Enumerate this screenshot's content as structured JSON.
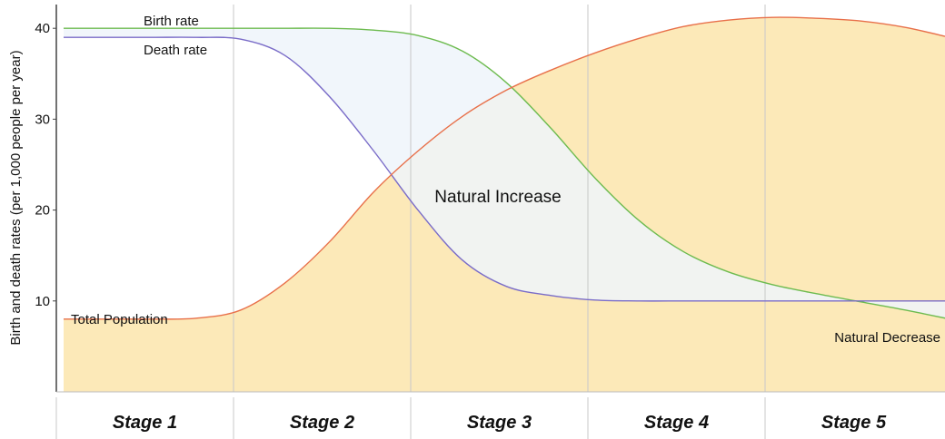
{
  "chart_data": {
    "type": "line",
    "title": "",
    "ylabel": "Birth and death rates (per 1,000 people per year)",
    "xlabel": "",
    "ylim": [
      0,
      41
    ],
    "yticks": [
      10,
      20,
      30,
      40
    ],
    "ytick_labels": [
      "10",
      "20",
      "30",
      "40"
    ],
    "grid": "vertical stage dividers",
    "categories": [
      "Stage 1",
      "Stage 2",
      "Stage 3",
      "Stage 4",
      "Stage 5"
    ],
    "x": [
      0,
      0.25,
      0.5,
      0.75,
      1,
      1.25,
      1.5,
      1.75,
      2,
      2.25,
      2.5,
      2.75,
      3,
      3.25,
      3.5,
      3.75,
      4,
      4.25,
      4.5,
      4.75,
      5
    ],
    "series": [
      {
        "name": "Birth rate",
        "color": "#6dbb4f",
        "values": [
          40,
          40,
          40,
          40,
          40,
          40,
          40,
          39.8,
          39.2,
          37.5,
          34,
          29,
          23.5,
          18.8,
          15.4,
          13.2,
          11.8,
          10.8,
          9.9,
          9,
          8
        ]
      },
      {
        "name": "Death rate",
        "color": "#7a6cc8",
        "values": [
          39,
          39,
          39,
          39,
          38.8,
          37,
          32.5,
          26.5,
          20,
          14.5,
          11.6,
          10.6,
          10.1,
          10,
          10,
          10,
          10,
          10,
          10,
          10,
          10
        ]
      },
      {
        "name": "Total Population",
        "color": "#e8704a",
        "values": [
          8,
          8,
          8,
          8.1,
          9,
          12,
          16.5,
          22,
          26.5,
          30.3,
          33.2,
          35.4,
          37.3,
          38.9,
          40.2,
          40.9,
          41.2,
          41.1,
          40.8,
          40.1,
          39
        ]
      }
    ],
    "annotations": [
      {
        "text": "Natural Increase",
        "fill": "#eef4fa"
      },
      {
        "text": "Natural Decrease"
      }
    ],
    "population_fill": "#fce9b8"
  }
}
